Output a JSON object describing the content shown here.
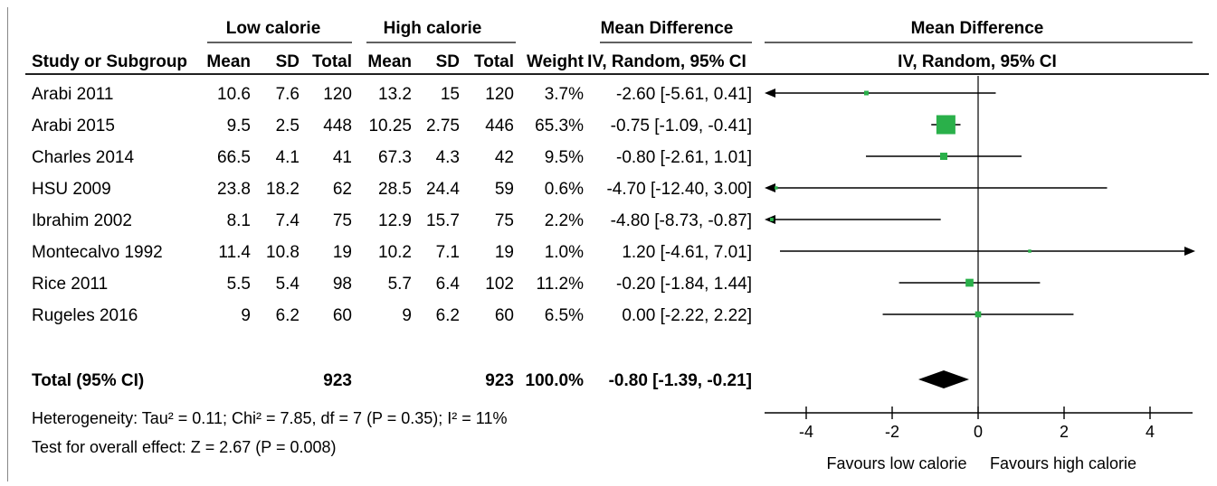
{
  "chart_data": {
    "type": "forest",
    "group_headers": {
      "low": "Low calorie",
      "high": "High calorie",
      "md_table": "Mean Difference",
      "md_plot": "Mean Difference"
    },
    "columns": {
      "study": "Study or Subgroup",
      "mean1": "Mean",
      "sd1": "SD",
      "total1": "Total",
      "mean2": "Mean",
      "sd2": "SD",
      "total2": "Total",
      "weight": "Weight",
      "ci": "IV, Random, 95% CI",
      "plot": "IV, Random, 95% CI"
    },
    "studies": [
      {
        "name": "Arabi 2011",
        "mean1": "10.6",
        "sd1": "7.6",
        "total1": "120",
        "mean2": "13.2",
        "sd2": "15",
        "total2": "120",
        "weight": "3.7%",
        "ci_text": "-2.60 [-5.61, 0.41]",
        "md": -2.6,
        "lo": -5.61,
        "hi": 0.41,
        "w": 3.7
      },
      {
        "name": "Arabi 2015",
        "mean1": "9.5",
        "sd1": "2.5",
        "total1": "448",
        "mean2": "10.25",
        "sd2": "2.75",
        "total2": "446",
        "weight": "65.3%",
        "ci_text": "-0.75 [-1.09, -0.41]",
        "md": -0.75,
        "lo": -1.09,
        "hi": -0.41,
        "w": 65.3
      },
      {
        "name": "Charles 2014",
        "mean1": "66.5",
        "sd1": "4.1",
        "total1": "41",
        "mean2": "67.3",
        "sd2": "4.3",
        "total2": "42",
        "weight": "9.5%",
        "ci_text": "-0.80 [-2.61, 1.01]",
        "md": -0.8,
        "lo": -2.61,
        "hi": 1.01,
        "w": 9.5
      },
      {
        "name": "HSU 2009",
        "mean1": "23.8",
        "sd1": "18.2",
        "total1": "62",
        "mean2": "28.5",
        "sd2": "24.4",
        "total2": "59",
        "weight": "0.6%",
        "ci_text": "-4.70 [-12.40, 3.00]",
        "md": -4.7,
        "lo": -12.4,
        "hi": 3.0,
        "w": 0.6
      },
      {
        "name": "Ibrahim 2002",
        "mean1": "8.1",
        "sd1": "7.4",
        "total1": "75",
        "mean2": "12.9",
        "sd2": "15.7",
        "total2": "75",
        "weight": "2.2%",
        "ci_text": "-4.80 [-8.73, -0.87]",
        "md": -4.8,
        "lo": -8.73,
        "hi": -0.87,
        "w": 2.2
      },
      {
        "name": "Montecalvo 1992",
        "mean1": "11.4",
        "sd1": "10.8",
        "total1": "19",
        "mean2": "10.2",
        "sd2": "7.1",
        "total2": "19",
        "weight": "1.0%",
        "ci_text": "1.20 [-4.61, 7.01]",
        "md": 1.2,
        "lo": -4.61,
        "hi": 7.01,
        "w": 1.0
      },
      {
        "name": "Rice 2011",
        "mean1": "5.5",
        "sd1": "5.4",
        "total1": "98",
        "mean2": "5.7",
        "sd2": "6.4",
        "total2": "102",
        "weight": "11.2%",
        "ci_text": "-0.20 [-1.84, 1.44]",
        "md": -0.2,
        "lo": -1.84,
        "hi": 1.44,
        "w": 11.2
      },
      {
        "name": "Rugeles 2016",
        "mean1": "9",
        "sd1": "6.2",
        "total1": "60",
        "mean2": "9",
        "sd2": "6.2",
        "total2": "60",
        "weight": "6.5%",
        "ci_text": "0.00 [-2.22, 2.22]",
        "md": 0.0,
        "lo": -2.22,
        "hi": 2.22,
        "w": 6.5
      }
    ],
    "total": {
      "name": "Total (95% CI)",
      "total1": "923",
      "total2": "923",
      "weight": "100.0%",
      "ci_text": "-0.80 [-1.39, -0.21]",
      "md": -0.8,
      "lo": -1.39,
      "hi": -0.21
    },
    "heterogeneity": "Heterogeneity: Tau² = 0.11; Chi² = 7.85, df = 7 (P = 0.35); I² = 11%",
    "overall_effect": "Test for overall effect: Z = 2.67 (P = 0.008)",
    "xlim": [
      -5,
      5
    ],
    "xticks": [
      -4,
      -2,
      0,
      2,
      4
    ],
    "xtick_labels": [
      "-4",
      "-2",
      "0",
      "2",
      "4"
    ],
    "favours_left": "Favours low calorie",
    "favours_right": "Favours high calorie",
    "colors": {
      "square": "#2ab04a",
      "diamond": "#000000",
      "line": "#000000"
    }
  }
}
